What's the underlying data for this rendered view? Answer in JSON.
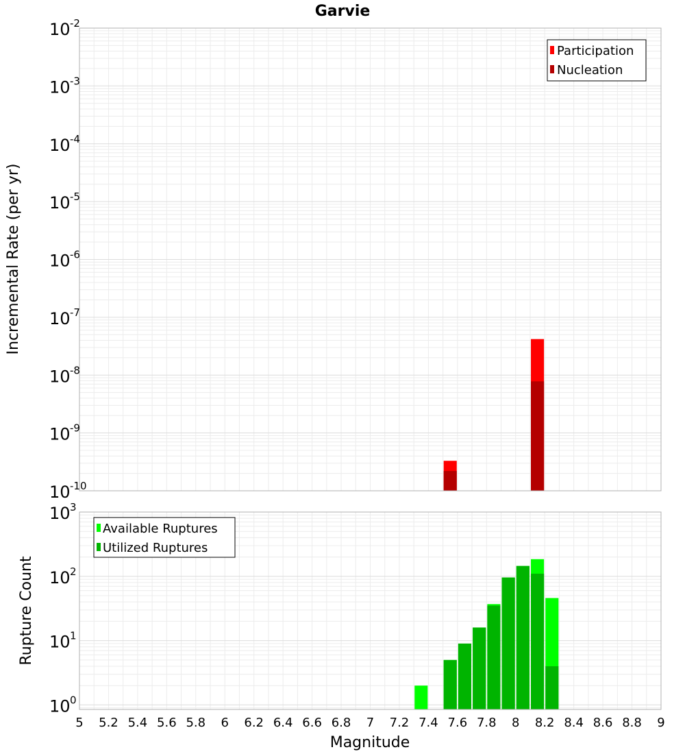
{
  "chart_data": [
    {
      "type": "bar",
      "title": "Garvie",
      "xlabel": "",
      "ylabel": "Incremental Rate (per yr)",
      "yscale": "log",
      "xlim": [
        5,
        9
      ],
      "ylim_exponents": [
        -10,
        -2
      ],
      "y_tick_labels": [
        {
          "base": "10",
          "exp": "-2"
        },
        {
          "base": "10",
          "exp": "-3"
        },
        {
          "base": "10",
          "exp": "-4"
        },
        {
          "base": "10",
          "exp": "-5"
        },
        {
          "base": "10",
          "exp": "-6"
        },
        {
          "base": "10",
          "exp": "-7"
        },
        {
          "base": "10",
          "exp": "-8"
        },
        {
          "base": "10",
          "exp": "-9"
        },
        {
          "base": "10",
          "exp": "-10"
        }
      ],
      "bar_width": 0.09,
      "grid": true,
      "legend_position": "top-right",
      "series": [
        {
          "name": "Participation",
          "color": "#ff0000",
          "x": [
            7.55,
            8.15
          ],
          "values": [
            3.3e-10,
            4.2e-08
          ]
        },
        {
          "name": "Nucleation",
          "color": "#b40000",
          "x": [
            7.55,
            8.15
          ],
          "values": [
            2.2e-10,
            7.8e-09
          ]
        }
      ]
    },
    {
      "type": "bar",
      "title": "",
      "xlabel": "Magnitude",
      "ylabel": "Rupture Count",
      "yscale": "log",
      "xlim": [
        5,
        9
      ],
      "ylim_exponents": [
        -0.07,
        3
      ],
      "y_tick_labels": [
        {
          "base": "10",
          "exp": "3"
        },
        {
          "base": "10",
          "exp": "2"
        },
        {
          "base": "10",
          "exp": "1"
        },
        {
          "base": "10",
          "exp": "0"
        }
      ],
      "x_tick_labels": [
        "5",
        "5.2",
        "5.4",
        "5.6",
        "5.8",
        "6",
        "6.2",
        "6.4",
        "6.6",
        "6.8",
        "7",
        "7.2",
        "7.4",
        "7.6",
        "7.8",
        "8",
        "8.2",
        "8.4",
        "8.6",
        "8.8",
        "9"
      ],
      "bar_width": 0.09,
      "grid": true,
      "legend_position": "top-left",
      "series": [
        {
          "name": "Available Ruptures",
          "color": "#00ff00",
          "x": [
            7.35,
            7.55,
            7.65,
            7.75,
            7.85,
            7.95,
            8.05,
            8.15,
            8.25
          ],
          "values": [
            2,
            5,
            9,
            16,
            37,
            96,
            145,
            185,
            46
          ]
        },
        {
          "name": "Utilized Ruptures",
          "color": "#00b400",
          "x": [
            7.35,
            7.55,
            7.65,
            7.75,
            7.85,
            7.95,
            8.05,
            8.15,
            8.25
          ],
          "values": [
            0,
            5,
            9,
            16,
            35,
            96,
            145,
            110,
            4
          ]
        }
      ]
    }
  ]
}
